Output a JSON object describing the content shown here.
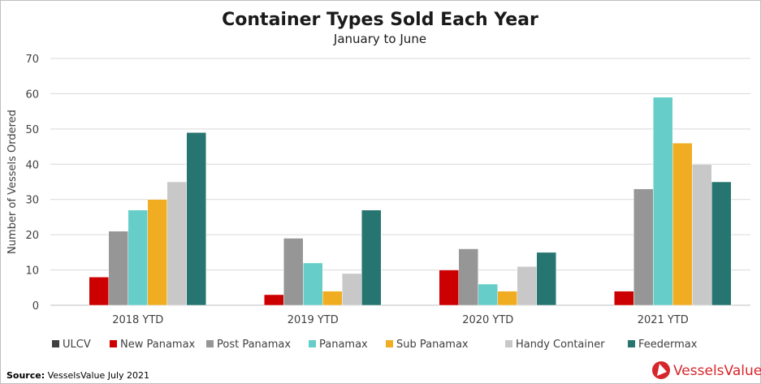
{
  "chart_data": {
    "type": "bar",
    "title": "Container Types Sold Each Year",
    "subtitle": "January to June",
    "xlabel": "",
    "ylabel": "Number of Vessels Ordered",
    "ylim": [
      0,
      70
    ],
    "yticks": [
      0,
      10,
      20,
      30,
      40,
      50,
      60,
      70
    ],
    "grid": true,
    "legend_position": "bottom",
    "categories": [
      "2018 YTD",
      "2019 YTD",
      "2020 YTD",
      "2021 YTD"
    ],
    "series": [
      {
        "name": "ULCV",
        "color": "#404040",
        "values": [
          0,
          0,
          0,
          0
        ]
      },
      {
        "name": "New Panamax",
        "color": "#cc0000",
        "values": [
          8,
          3,
          10,
          4
        ]
      },
      {
        "name": "Post Panamax",
        "color": "#969696",
        "values": [
          21,
          19,
          16,
          33
        ]
      },
      {
        "name": "Panamax",
        "color": "#66cdc8",
        "values": [
          27,
          12,
          6,
          59
        ]
      },
      {
        "name": "Sub Panamax",
        "color": "#f0ad22",
        "values": [
          30,
          4,
          4,
          46
        ]
      },
      {
        "name": "Handy Container",
        "color": "#c8c8c8",
        "values": [
          35,
          9,
          11,
          40
        ]
      },
      {
        "name": "Feedermax",
        "color": "#267570",
        "values": [
          49,
          27,
          15,
          35
        ]
      }
    ]
  },
  "footer": {
    "source_label": "Source:",
    "source_text": " VesselsValue July 2021",
    "logo_text": "VesselsValue",
    "brand_color": "#d7262b"
  }
}
